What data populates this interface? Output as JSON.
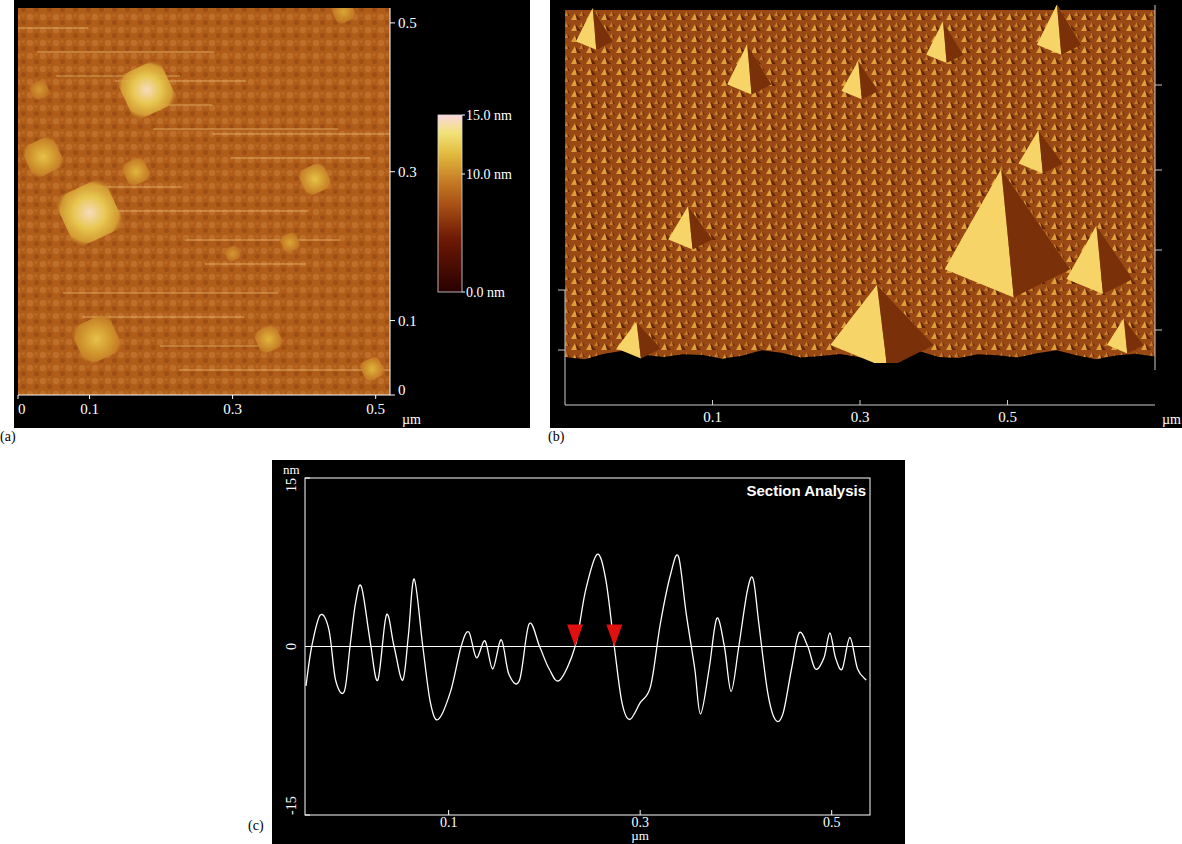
{
  "chart_data": [
    {
      "type": "image",
      "panel_label": "(a)",
      "x_label": "µm",
      "xlim": [
        0,
        0.52
      ],
      "xticks": [
        0,
        0.1,
        0.3,
        0.5
      ],
      "ylim": [
        0,
        0.52
      ],
      "yticks": [
        0,
        0.1,
        0.3,
        0.5
      ],
      "background_height": 8,
      "particles": {
        "x": [
          0.18,
          0.1,
          0.035,
          0.165,
          0.415,
          0.38,
          0.11,
          0.35,
          0.495,
          0.03,
          0.3,
          0.455
        ],
        "y": [
          0.41,
          0.245,
          0.32,
          0.3,
          0.29,
          0.205,
          0.075,
          0.075,
          0.035,
          0.41,
          0.19,
          0.515
        ],
        "height": [
          14.5,
          14.5,
          12,
          11.5,
          12,
          11,
          12,
          11.5,
          11.5,
          10.5,
          10.5,
          11
        ],
        "size": [
          0.07,
          0.08,
          0.05,
          0.035,
          0.04,
          0.025,
          0.06,
          0.035,
          0.03,
          0.025,
          0.02,
          0.03
        ]
      },
      "colorbar": {
        "range": [
          0,
          15
        ],
        "ticks": [
          {
            "value": 15,
            "label": "15.0 nm"
          },
          {
            "value": 10,
            "label": "10.0 nm"
          },
          {
            "value": 0,
            "label": "0.0 nm"
          }
        ]
      }
    },
    {
      "type": "surface3d",
      "panel_label": "(b)",
      "x_label": "µm",
      "xlim": [
        -0.1,
        0.7
      ],
      "xticks": [
        0.1,
        0.3,
        0.5
      ],
      "ylim": [
        0,
        0.5
      ],
      "zlim": [
        0,
        15
      ],
      "peaks": {
        "x": [
          0.5,
          0.33,
          0.625,
          0.15,
          -0.06,
          0.415,
          0.57,
          0.07,
          0.0,
          0.66,
          0.3,
          0.545
        ],
        "y": [
          0.13,
          0.015,
          0.115,
          0.41,
          0.475,
          0.455,
          0.47,
          0.175,
          0.01,
          0.015,
          0.4,
          0.29
        ],
        "height": [
          15,
          9,
          8,
          6,
          5,
          5,
          6,
          5,
          4,
          4,
          4.5,
          5
        ],
        "size": [
          0.17,
          0.14,
          0.09,
          0.06,
          0.05,
          0.05,
          0.06,
          0.06,
          0.06,
          0.05,
          0.05,
          0.06
        ]
      }
    },
    {
      "type": "line",
      "panel_label": "(c)",
      "title": "Section Analysis",
      "y_label": "nm",
      "x_label": "µm",
      "xlim": [
        -0.05,
        0.54
      ],
      "xticks": [
        0.1,
        0.3,
        0.5
      ],
      "ylim": [
        -15,
        15
      ],
      "yticks": [
        -15,
        0,
        15
      ],
      "color": "#ffffff",
      "reference_line": 0,
      "cursors": [
        0.232,
        0.273
      ],
      "x": [
        -0.049,
        -0.043,
        -0.034,
        -0.025,
        -0.018,
        -0.009,
        -0.003,
        0.003,
        0.009,
        0.018,
        0.026,
        0.035,
        0.043,
        0.052,
        0.058,
        0.064,
        0.073,
        0.081,
        0.089,
        0.102,
        0.113,
        0.121,
        0.129,
        0.138,
        0.146,
        0.155,
        0.163,
        0.174,
        0.184,
        0.195,
        0.205,
        0.216,
        0.232,
        0.243,
        0.255,
        0.264,
        0.273,
        0.281,
        0.289,
        0.3,
        0.311,
        0.321,
        0.332,
        0.34,
        0.348,
        0.357,
        0.363,
        0.372,
        0.38,
        0.388,
        0.395,
        0.403,
        0.412,
        0.418,
        0.424,
        0.433,
        0.441,
        0.449,
        0.458,
        0.466,
        0.475,
        0.483,
        0.492,
        0.498,
        0.504,
        0.511,
        0.519,
        0.527,
        0.536
      ],
      "values": [
        -3.5,
        0,
        2.8,
        1.5,
        -3,
        -4,
        0,
        4,
        5.3,
        0.5,
        -3,
        2.8,
        0,
        -3,
        1,
        6,
        0,
        -5,
        -6.5,
        -4,
        0,
        1.3,
        -1,
        0.5,
        -2,
        0.6,
        -2.5,
        -3,
        2,
        0,
        -2,
        -3,
        0,
        5,
        8.2,
        6,
        0,
        -5,
        -6.5,
        -5,
        -3.5,
        2,
        6.5,
        8,
        3,
        -2,
        -6,
        -2,
        2.5,
        0,
        -4,
        0,
        5,
        6,
        2,
        -4,
        -6.5,
        -6,
        -2,
        1.2,
        0,
        -2,
        -1,
        1.2,
        -1,
        -2,
        0.8,
        -2,
        -3
      ]
    }
  ]
}
